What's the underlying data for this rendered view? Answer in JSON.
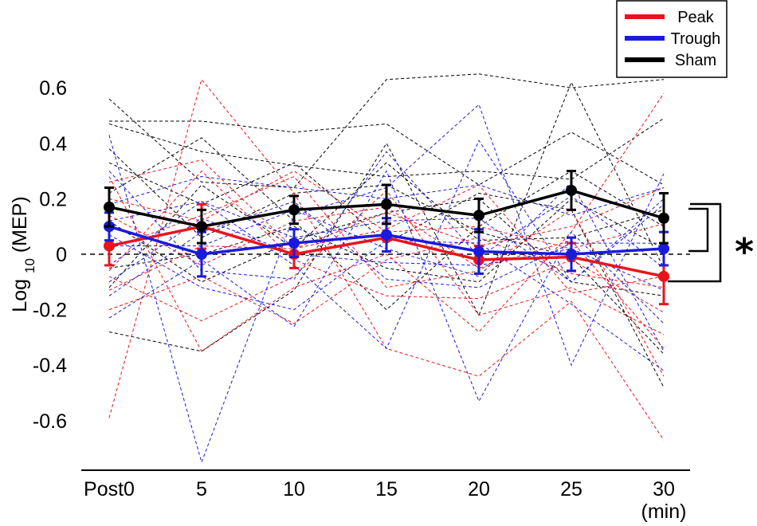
{
  "chart_data": {
    "type": "line",
    "title": "",
    "xlabel": "",
    "x_unit_label": "(min)",
    "ylabel": "Log",
    "ylabel_subscript": "10",
    "ylabel_suffix": "(MEP)",
    "categories": [
      "Post0",
      "5",
      "10",
      "15",
      "20",
      "25",
      "30"
    ],
    "ylim": [
      -0.75,
      0.6
    ],
    "yticks": [
      0.6,
      0.4,
      0.2,
      0,
      -0.2,
      -0.4,
      -0.6
    ],
    "ytick_labels": [
      "0.6",
      "0.4",
      "0.2",
      "0",
      "-0.2",
      "-0.4",
      "-0.6"
    ],
    "reference_line": 0,
    "significance_marker": "*",
    "colors": {
      "Peak": "#e8141b",
      "Trough": "#1a1adc",
      "Sham": "#000000"
    },
    "legend": {
      "position": "top-right",
      "entries": [
        {
          "label": "Peak",
          "color": "#e8141b"
        },
        {
          "label": "Trough",
          "color": "#1a1adc"
        },
        {
          "label": "Sham",
          "color": "#000000"
        }
      ]
    },
    "series": [
      {
        "name": "Peak",
        "color": "#e8141b",
        "values": [
          0.03,
          0.1,
          0.0,
          0.06,
          -0.02,
          -0.01,
          -0.08
        ],
        "error": [
          0.07,
          0.08,
          0.05,
          0.05,
          0.05,
          0.05,
          0.1
        ]
      },
      {
        "name": "Trough",
        "color": "#1a1adc",
        "values": [
          0.1,
          0.0,
          0.04,
          0.07,
          0.01,
          0.0,
          0.02
        ],
        "error": [
          0.05,
          0.08,
          0.05,
          0.06,
          0.08,
          0.06,
          0.06
        ]
      },
      {
        "name": "Sham",
        "color": "#000000",
        "values": [
          0.17,
          0.1,
          0.16,
          0.18,
          0.14,
          0.23,
          0.13
        ],
        "error": [
          0.07,
          0.06,
          0.05,
          0.07,
          0.06,
          0.07,
          0.09
        ]
      }
    ],
    "individual_subjects": {
      "Peak": [
        [
          -0.59,
          0.63,
          0.22,
          -0.34,
          -0.44,
          -0.17,
          -0.67
        ],
        [
          0.28,
          -0.35,
          -0.12,
          0.0,
          -0.28,
          0.08,
          0.58
        ],
        [
          0.14,
          -0.04,
          0.12,
          0.17,
          -0.05,
          0.05,
          -0.34
        ],
        [
          -0.13,
          0.03,
          0.02,
          0.09,
          0.25,
          -0.14,
          -0.08
        ],
        [
          0.02,
          0.14,
          0.28,
          -0.12,
          -0.06,
          0.16,
          -0.44
        ],
        [
          0.26,
          0.34,
          0.02,
          0.15,
          0.03,
          0.1,
          0.24
        ],
        [
          -0.2,
          -0.08,
          -0.25,
          -0.02,
          0.06,
          -0.07,
          -0.12
        ],
        [
          -0.08,
          -0.24,
          -0.08,
          0.23,
          -0.22,
          -0.12,
          -0.29
        ],
        [
          0.2,
          0.12,
          0.3,
          0.08,
          0.1,
          0.02,
          0.11
        ],
        [
          -0.06,
          0.3,
          -0.02,
          -0.15,
          -0.16,
          -0.02,
          -0.21
        ]
      ],
      "Trough": [
        [
          0.43,
          -0.75,
          0.14,
          0.24,
          0.54,
          -0.4,
          0.29
        ],
        [
          -0.23,
          -0.02,
          -0.26,
          0.3,
          -0.53,
          0.08,
          -0.25
        ],
        [
          0.12,
          0.19,
          -0.04,
          -0.34,
          0.41,
          -0.1,
          0.18
        ],
        [
          0.03,
          0.03,
          0.16,
          0.02,
          -0.08,
          0.26,
          -0.35
        ],
        [
          -0.04,
          0.19,
          0.06,
          0.12,
          0.13,
          -0.1,
          0.2
        ],
        [
          0.3,
          -0.06,
          -0.09,
          0.37,
          -0.01,
          0.21,
          -0.05
        ],
        [
          -0.15,
          0.08,
          0.19,
          -0.09,
          -0.12,
          0.04,
          0.04
        ],
        [
          0.07,
          -0.12,
          -0.2,
          0.05,
          0.04,
          -0.18,
          -0.42
        ],
        [
          0.18,
          0.28,
          0.24,
          0.2,
          0.25,
          0.14,
          0.24
        ],
        [
          -0.1,
          0.13,
          0.0,
          -0.03,
          -0.04,
          0.02,
          -0.13
        ]
      ],
      "Sham": [
        [
          0.56,
          0.26,
          0.24,
          0.63,
          0.65,
          0.6,
          0.63
        ],
        [
          0.48,
          0.48,
          0.44,
          0.47,
          0.25,
          0.44,
          0.25
        ],
        [
          0.47,
          0.37,
          0.32,
          0.28,
          0.3,
          0.27,
          0.49
        ],
        [
          0.33,
          0.18,
          0.33,
          0.04,
          0.22,
          0.16,
          -0.48
        ],
        [
          -0.28,
          -0.35,
          -0.13,
          0.4,
          -0.22,
          0.62,
          -0.05
        ],
        [
          0.22,
          0.42,
          0.12,
          -0.2,
          0.1,
          0.3,
          0.1
        ],
        [
          0.38,
          0.06,
          0.22,
          0.25,
          0.08,
          -0.01,
          -0.36
        ],
        [
          -0.05,
          0.0,
          0.1,
          -0.05,
          -0.1,
          0.2,
          0.02
        ],
        [
          0.12,
          -0.1,
          0.05,
          0.15,
          0.2,
          -0.1,
          -0.15
        ],
        [
          -0.12,
          0.25,
          0.02,
          0.33,
          0.05,
          0.06,
          0.16
        ]
      ]
    }
  }
}
